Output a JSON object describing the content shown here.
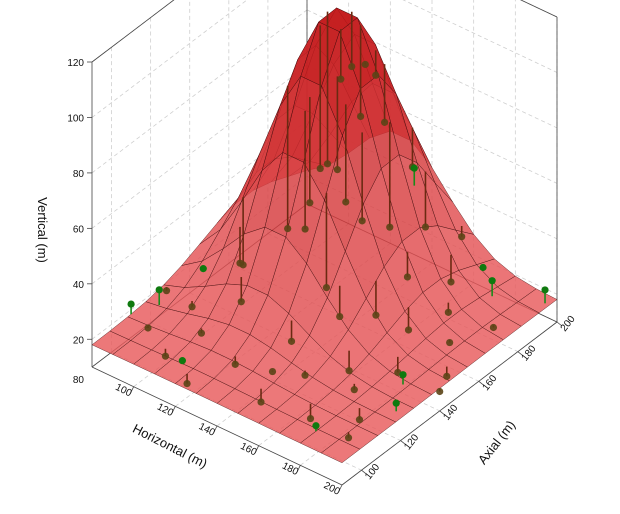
{
  "chart_data": {
    "type": "surface3d",
    "title": "",
    "axes": {
      "x": {
        "label": "Horizontal (m)",
        "range": [
          80,
          200
        ],
        "ticks": [
          100,
          120,
          140,
          160,
          180,
          200
        ],
        "tick_labels": [
          "100",
          "120",
          "140",
          "160",
          "180",
          "200"
        ]
      },
      "y": {
        "label": "Axial (m)",
        "range": [
          90,
          200
        ],
        "ticks": [
          100,
          120,
          140,
          160,
          180,
          200
        ],
        "tick_labels": [
          "100",
          "120",
          "140",
          "160",
          "180",
          "200"
        ]
      },
      "z": {
        "label": "Vertical (m)",
        "range": [
          10,
          120
        ],
        "ticks": [
          20,
          40,
          60,
          80,
          100,
          120
        ],
        "tick_labels": [
          "20",
          "40",
          "60",
          "80",
          "100",
          "120"
        ]
      },
      "corner_label": "80"
    },
    "grid": true,
    "surface": {
      "model": "gaussian",
      "base": 18,
      "amplitude": 96,
      "center": [
        125,
        168
      ],
      "spread": [
        22,
        22
      ],
      "color": "#e8202a"
    },
    "points": [
      {
        "x": 80,
        "y": 110,
        "z": 22
      },
      {
        "x": 82,
        "y": 126,
        "z": 19
      },
      {
        "x": 86,
        "y": 118,
        "z": 25
      },
      {
        "x": 90,
        "y": 108,
        "z": 18
      },
      {
        "x": 94,
        "y": 132,
        "z": 28
      },
      {
        "x": 98,
        "y": 122,
        "z": 21
      },
      {
        "x": 100,
        "y": 146,
        "z": 24
      },
      {
        "x": 104,
        "y": 102,
        "z": 16
      },
      {
        "x": 106,
        "y": 138,
        "z": 31
      },
      {
        "x": 110,
        "y": 114,
        "z": 20
      },
      {
        "x": 112,
        "y": 156,
        "z": 36
      },
      {
        "x": 116,
        "y": 128,
        "z": 26
      },
      {
        "x": 118,
        "y": 170,
        "z": 54
      },
      {
        "x": 120,
        "y": 96,
        "z": 15
      },
      {
        "x": 122,
        "y": 162,
        "z": 58
      },
      {
        "x": 124,
        "y": 176,
        "z": 88
      },
      {
        "x": 126,
        "y": 150,
        "z": 44
      },
      {
        "x": 128,
        "y": 184,
        "z": 82
      },
      {
        "x": 130,
        "y": 164,
        "z": 92
      },
      {
        "x": 130,
        "y": 110,
        "z": 18
      },
      {
        "x": 132,
        "y": 172,
        "z": 75
      },
      {
        "x": 134,
        "y": 158,
        "z": 64
      },
      {
        "x": 136,
        "y": 180,
        "z": 70
      },
      {
        "x": 138,
        "y": 168,
        "z": 98
      },
      {
        "x": 140,
        "y": 146,
        "z": 30
      },
      {
        "x": 140,
        "y": 190,
        "z": 50
      },
      {
        "x": 142,
        "y": 126,
        "z": 22
      },
      {
        "x": 144,
        "y": 160,
        "z": 48
      },
      {
        "x": 146,
        "y": 172,
        "z": 40
      },
      {
        "x": 148,
        "y": 104,
        "z": 14
      },
      {
        "x": 150,
        "y": 186,
        "z": 34
      },
      {
        "x": 152,
        "y": 140,
        "z": 27
      },
      {
        "x": 154,
        "y": 176,
        "z": 62
      },
      {
        "x": 156,
        "y": 118,
        "z": 19
      },
      {
        "x": 158,
        "y": 196,
        "z": 28
      },
      {
        "x": 160,
        "y": 150,
        "z": 25
      },
      {
        "x": 162,
        "y": 164,
        "z": 32
      },
      {
        "x": 164,
        "y": 132,
        "z": 16
      },
      {
        "x": 166,
        "y": 182,
        "z": 22
      },
      {
        "x": 168,
        "y": 108,
        "z": 13
      },
      {
        "x": 170,
        "y": 156,
        "z": 20
      },
      {
        "x": 172,
        "y": 192,
        "z": 24
      },
      {
        "x": 174,
        "y": 124,
        "z": 17
      },
      {
        "x": 176,
        "y": 170,
        "z": 21
      },
      {
        "x": 178,
        "y": 142,
        "z": 15
      },
      {
        "x": 180,
        "y": 98,
        "z": 20
      },
      {
        "x": 182,
        "y": 186,
        "z": 26
      },
      {
        "x": 184,
        "y": 116,
        "z": 14
      },
      {
        "x": 186,
        "y": 160,
        "z": 19
      },
      {
        "x": 188,
        "y": 134,
        "z": 22
      },
      {
        "x": 190,
        "y": 104,
        "z": 16
      },
      {
        "x": 192,
        "y": 176,
        "z": 18
      },
      {
        "x": 194,
        "y": 150,
        "z": 15
      },
      {
        "x": 196,
        "y": 122,
        "z": 21
      },
      {
        "x": 198,
        "y": 196,
        "z": 23
      },
      {
        "x": 200,
        "y": 140,
        "z": 17
      },
      {
        "x": 102,
        "y": 178,
        "z": 30
      },
      {
        "x": 108,
        "y": 190,
        "z": 26
      },
      {
        "x": 114,
        "y": 100,
        "z": 19
      },
      {
        "x": 146,
        "y": 112,
        "z": 20
      }
    ],
    "point_color": "#0f7a0f",
    "stem_color_above": "#1a8a1a",
    "stem_color_below": "#6b2a12"
  }
}
